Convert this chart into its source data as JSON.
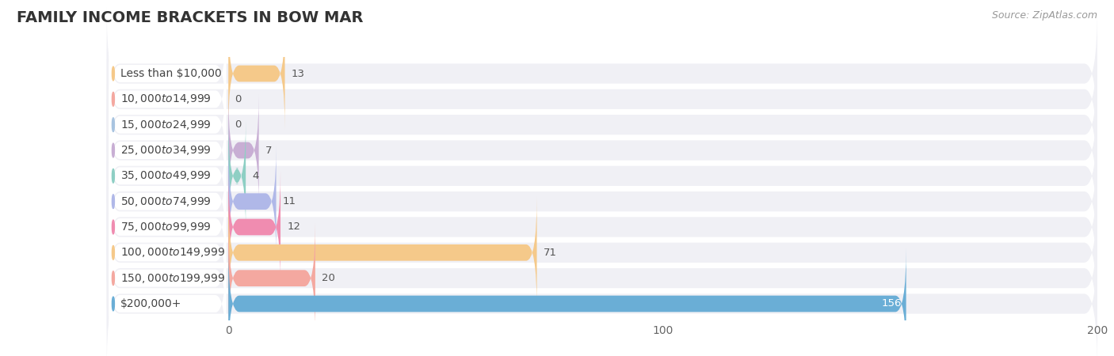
{
  "title": "FAMILY INCOME BRACKETS IN BOW MAR",
  "source": "Source: ZipAtlas.com",
  "categories": [
    "Less than $10,000",
    "$10,000 to $14,999",
    "$15,000 to $24,999",
    "$25,000 to $34,999",
    "$35,000 to $49,999",
    "$50,000 to $74,999",
    "$75,000 to $99,999",
    "$100,000 to $149,999",
    "$150,000 to $199,999",
    "$200,000+"
  ],
  "values": [
    13,
    0,
    0,
    7,
    4,
    11,
    12,
    71,
    20,
    156
  ],
  "bar_colors": [
    "#f5c98a",
    "#f4a8a0",
    "#a8c4e0",
    "#c8aed4",
    "#8ecfc4",
    "#b0b8e8",
    "#f08cb0",
    "#f5c98a",
    "#f4a8a0",
    "#6aaed6"
  ],
  "bg_color": "#ffffff",
  "row_bg_color": "#f0f0f5",
  "xlim": [
    0,
    200
  ],
  "xticks": [
    0,
    100,
    200
  ],
  "title_fontsize": 14,
  "label_fontsize": 10,
  "value_fontsize": 9.5,
  "source_fontsize": 9
}
